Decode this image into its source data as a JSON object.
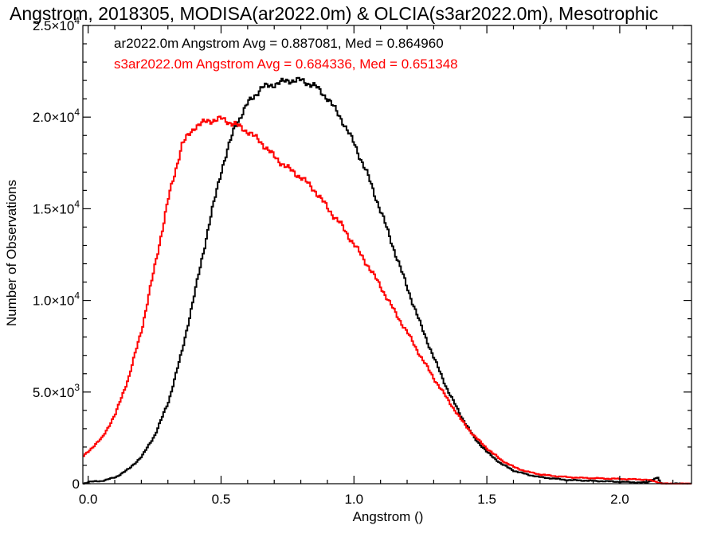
{
  "chart_data": {
    "type": "line",
    "title": "Angstrom, 2018305, MODISA(ar2022.0m) & OLCIA(s3ar2022.0m), Mesotrophic",
    "xlabel": "Angstrom ()",
    "ylabel": "Number of Observations",
    "xlim": [
      -0.02,
      2.27
    ],
    "ylim": [
      0,
      25000
    ],
    "x_ticks": [
      {
        "value": 0.0,
        "label": "0.0"
      },
      {
        "value": 0.5,
        "label": "0.5"
      },
      {
        "value": 1.0,
        "label": "1.0"
      },
      {
        "value": 1.5,
        "label": "1.5"
      },
      {
        "value": 2.0,
        "label": "2.0"
      }
    ],
    "y_ticks": [
      {
        "value": 0,
        "mant": "0",
        "exp": ""
      },
      {
        "value": 5000,
        "mant": "5.0×10",
        "exp": "3"
      },
      {
        "value": 10000,
        "mant": "1.0×10",
        "exp": "4"
      },
      {
        "value": 15000,
        "mant": "1.5×10",
        "exp": "4"
      },
      {
        "value": 20000,
        "mant": "2.0×10",
        "exp": "4"
      },
      {
        "value": 25000,
        "mant": "2.5×10",
        "exp": "4"
      }
    ],
    "grid": false,
    "legend_position": "top-left",
    "series": [
      {
        "name": "ar2022.0m",
        "legend": "ar2022.0m Angstrom Avg = 0.887081, Med = 0.864960",
        "color": "#000000",
        "x": [
          -0.02,
          0.0,
          0.05,
          0.1,
          0.15,
          0.2,
          0.25,
          0.3,
          0.35,
          0.4,
          0.45,
          0.5,
          0.55,
          0.6,
          0.65,
          0.7,
          0.75,
          0.8,
          0.85,
          0.9,
          0.95,
          1.0,
          1.05,
          1.1,
          1.15,
          1.2,
          1.25,
          1.3,
          1.35,
          1.4,
          1.45,
          1.5,
          1.55,
          1.6,
          1.65,
          1.7,
          1.75,
          1.8,
          1.85,
          1.9,
          1.95,
          2.0,
          2.05,
          2.1,
          2.14,
          2.15,
          2.16,
          2.2,
          2.27
        ],
        "y": [
          0,
          100,
          150,
          350,
          800,
          1500,
          2700,
          4500,
          7200,
          10500,
          14000,
          17200,
          19500,
          20800,
          21600,
          21800,
          22000,
          22000,
          21700,
          21000,
          19900,
          18500,
          16800,
          14800,
          12700,
          10600,
          8600,
          6800,
          5100,
          3700,
          2500,
          1700,
          1100,
          700,
          500,
          350,
          280,
          200,
          180,
          150,
          130,
          100,
          80,
          60,
          350,
          30,
          10,
          0,
          0
        ]
      },
      {
        "name": "s3ar2022.0m",
        "legend": "s3ar2022.0m Angstrom Avg = 0.684336, Med = 0.651348",
        "color": "#ff0000",
        "x": [
          -0.02,
          0.0,
          0.05,
          0.1,
          0.15,
          0.2,
          0.25,
          0.3,
          0.35,
          0.4,
          0.45,
          0.5,
          0.55,
          0.6,
          0.65,
          0.7,
          0.75,
          0.8,
          0.85,
          0.9,
          0.95,
          1.0,
          1.05,
          1.1,
          1.15,
          1.2,
          1.25,
          1.3,
          1.35,
          1.4,
          1.45,
          1.5,
          1.55,
          1.6,
          1.65,
          1.7,
          1.75,
          1.8,
          1.85,
          1.9,
          1.95,
          2.0,
          2.05,
          2.1,
          2.13,
          2.16,
          2.2,
          2.27
        ],
        "y": [
          1500,
          1800,
          2500,
          3800,
          5800,
          8500,
          12000,
          15600,
          18500,
          19500,
          19800,
          19900,
          19600,
          19200,
          18600,
          17800,
          17200,
          16700,
          16000,
          15000,
          14100,
          13000,
          11900,
          10700,
          9400,
          8200,
          6900,
          5700,
          4600,
          3500,
          2600,
          1900,
          1300,
          900,
          650,
          500,
          420,
          360,
          320,
          300,
          280,
          260,
          240,
          220,
          120,
          0,
          0,
          0
        ]
      }
    ]
  }
}
